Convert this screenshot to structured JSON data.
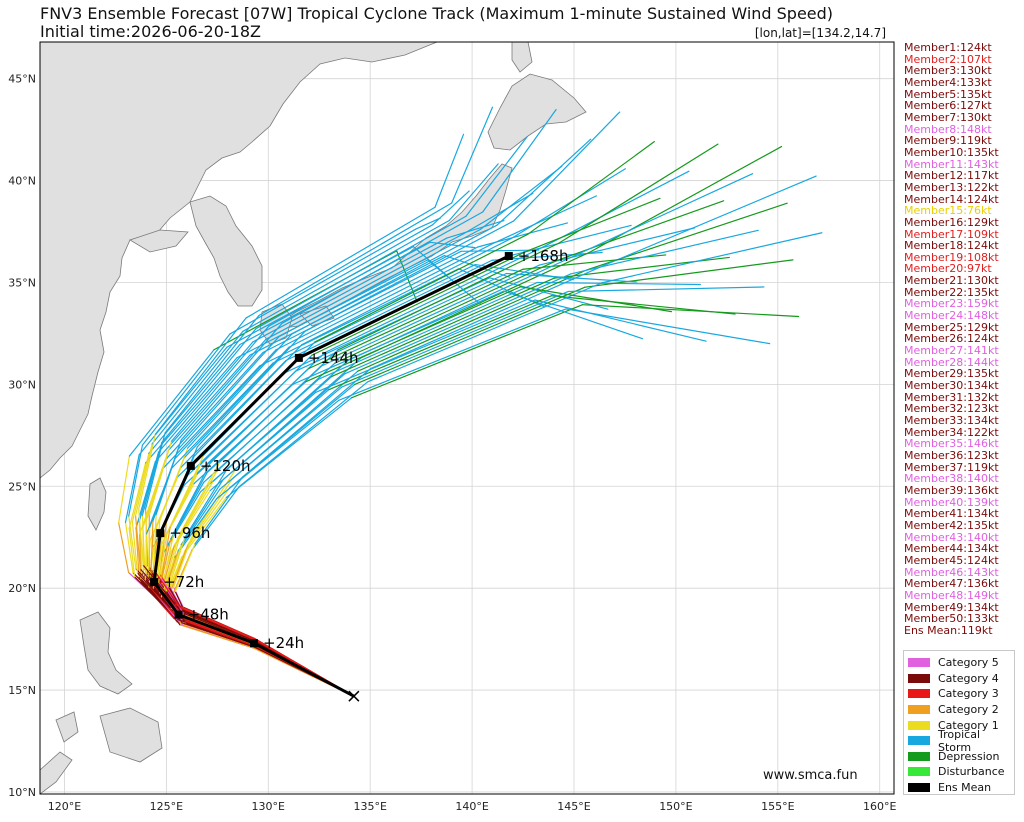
{
  "header": {
    "title": "FNV3 Ensemble Forecast [07W] Tropical Cyclone Track (Maximum 1-minute Sustained Wind Speed)",
    "subtitle": "Initial time:2026-06-20-18Z",
    "coordinate": "[lon,lat]=[134.2,14.7]"
  },
  "map": {
    "lon_range": [
      118.8,
      160.7
    ],
    "lat_range": [
      9.9,
      46.8
    ],
    "lon_ticks": [
      "120°E",
      "125°E",
      "130°E",
      "135°E",
      "140°E",
      "145°E",
      "150°E",
      "155°E",
      "160°E"
    ],
    "lat_ticks": [
      "10°N",
      "15°N",
      "20°N",
      "25°N",
      "30°N",
      "35°N",
      "40°N",
      "45°N"
    ],
    "land_color": "#e0e0e0",
    "ocean_color": "#ffffff",
    "grid": true,
    "credit": "www.smca.fun"
  },
  "ens_mean_track": {
    "lead_labels": [
      "+24h",
      "+48h",
      "+72h",
      "+96h",
      "+120h",
      "+144h",
      "+168h"
    ],
    "points": [
      [
        134.2,
        14.7
      ],
      [
        129.3,
        17.3
      ],
      [
        125.6,
        18.7
      ],
      [
        124.4,
        20.3
      ],
      [
        124.7,
        22.7
      ],
      [
        126.2,
        26.0
      ],
      [
        131.5,
        31.3
      ],
      [
        141.8,
        36.3
      ]
    ]
  },
  "members": [
    {
      "label": "Member1:124kt",
      "color": "#7b0a0a"
    },
    {
      "label": "Member2:107kt",
      "color": "#e02020"
    },
    {
      "label": "Member3:130kt",
      "color": "#7b0a0a"
    },
    {
      "label": "Member4:133kt",
      "color": "#7b0a0a"
    },
    {
      "label": "Member5:135kt",
      "color": "#7b0a0a"
    },
    {
      "label": "Member6:127kt",
      "color": "#7b0a0a"
    },
    {
      "label": "Member7:130kt",
      "color": "#7b0a0a"
    },
    {
      "label": "Member8:148kt",
      "color": "#e060e0"
    },
    {
      "label": "Member9:119kt",
      "color": "#7b0a0a"
    },
    {
      "label": "Member10:135kt",
      "color": "#7b0a0a"
    },
    {
      "label": "Member11:143kt",
      "color": "#e060e0"
    },
    {
      "label": "Member12:117kt",
      "color": "#7b0a0a"
    },
    {
      "label": "Member13:122kt",
      "color": "#7b0a0a"
    },
    {
      "label": "Member14:124kt",
      "color": "#7b0a0a"
    },
    {
      "label": "Member15:76kt",
      "color": "#e8d000"
    },
    {
      "label": "Member16:129kt",
      "color": "#7b0a0a"
    },
    {
      "label": "Member17:109kt",
      "color": "#e02020"
    },
    {
      "label": "Member18:124kt",
      "color": "#7b0a0a"
    },
    {
      "label": "Member19:108kt",
      "color": "#e02020"
    },
    {
      "label": "Member20:97kt",
      "color": "#e02020"
    },
    {
      "label": "Member21:130kt",
      "color": "#7b0a0a"
    },
    {
      "label": "Member22:135kt",
      "color": "#7b0a0a"
    },
    {
      "label": "Member23:159kt",
      "color": "#e060e0"
    },
    {
      "label": "Member24:148kt",
      "color": "#e060e0"
    },
    {
      "label": "Member25:129kt",
      "color": "#7b0a0a"
    },
    {
      "label": "Member26:124kt",
      "color": "#7b0a0a"
    },
    {
      "label": "Member27:141kt",
      "color": "#e060e0"
    },
    {
      "label": "Member28:144kt",
      "color": "#e060e0"
    },
    {
      "label": "Member29:135kt",
      "color": "#7b0a0a"
    },
    {
      "label": "Member30:134kt",
      "color": "#7b0a0a"
    },
    {
      "label": "Member31:132kt",
      "color": "#7b0a0a"
    },
    {
      "label": "Member32:123kt",
      "color": "#7b0a0a"
    },
    {
      "label": "Member33:134kt",
      "color": "#7b0a0a"
    },
    {
      "label": "Member34:122kt",
      "color": "#7b0a0a"
    },
    {
      "label": "Member35:146kt",
      "color": "#e060e0"
    },
    {
      "label": "Member36:123kt",
      "color": "#7b0a0a"
    },
    {
      "label": "Member37:119kt",
      "color": "#7b0a0a"
    },
    {
      "label": "Member38:140kt",
      "color": "#e060e0"
    },
    {
      "label": "Member39:136kt",
      "color": "#7b0a0a"
    },
    {
      "label": "Member40:139kt",
      "color": "#e060e0"
    },
    {
      "label": "Member41:134kt",
      "color": "#7b0a0a"
    },
    {
      "label": "Member42:135kt",
      "color": "#7b0a0a"
    },
    {
      "label": "Member43:140kt",
      "color": "#e060e0"
    },
    {
      "label": "Member44:134kt",
      "color": "#7b0a0a"
    },
    {
      "label": "Member45:124kt",
      "color": "#7b0a0a"
    },
    {
      "label": "Member46:143kt",
      "color": "#e060e0"
    },
    {
      "label": "Member47:136kt",
      "color": "#7b0a0a"
    },
    {
      "label": "Member48:149kt",
      "color": "#e060e0"
    },
    {
      "label": "Member49:134kt",
      "color": "#7b0a0a"
    },
    {
      "label": "Member50:133kt",
      "color": "#7b0a0a"
    },
    {
      "label": "Ens Mean:119kt",
      "color": "#7b0a0a"
    }
  ],
  "legend": [
    {
      "label": "Category 5",
      "color": "#e060e0"
    },
    {
      "label": "Category 4",
      "color": "#7b0a0a"
    },
    {
      "label": "Category 3",
      "color": "#e81818"
    },
    {
      "label": "Category 2",
      "color": "#f0a020"
    },
    {
      "label": "Category 1",
      "color": "#ecdc20"
    },
    {
      "label": "Tropical Storm",
      "color": "#18a8e0"
    },
    {
      "label": "Depression",
      "color": "#149a1c"
    },
    {
      "label": "Disturbance",
      "color": "#38e838"
    },
    {
      "label": "Ens Mean",
      "color": "#000000"
    }
  ]
}
